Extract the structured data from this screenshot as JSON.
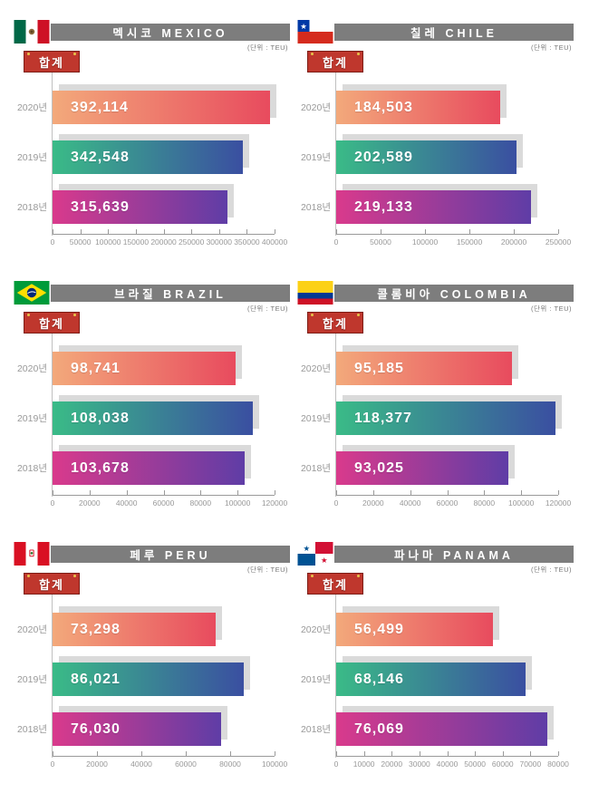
{
  "badge_label": "합계",
  "unit_label": "(단위 : TEU)",
  "row_tops": [
    80,
    135,
    190
  ],
  "colors": {
    "header_bg": "#7d7d7d",
    "title_text": "#ffffff",
    "unit_text": "#777777",
    "axis_line": "#9a9a9a",
    "connector_line": "#c0c0c0",
    "tick_text": "#999999",
    "year_text": "#999999",
    "bar_shadow": "#dadada",
    "badge_bg": "#bf372d",
    "badge_border": "#7e1d16",
    "value_text": "#ffffff",
    "row_gradients": [
      [
        "#f3a97b",
        "#e84b5e"
      ],
      [
        "#3abb87",
        "#3a4fa1"
      ],
      [
        "#d93a8c",
        "#5f3da6"
      ]
    ]
  },
  "chart_data": [
    {
      "type": "bar",
      "orientation": "horizontal",
      "title": "멕시코 MEXICO",
      "country_kr": "멕시코",
      "country_en": "MEXICO",
      "flag_icon": "mexico-flag-icon",
      "unit": "(단위 : TEU)",
      "legend": "합계",
      "categories": [
        "2020년",
        "2019년",
        "2018년"
      ],
      "values": [
        392114,
        342548,
        315639
      ],
      "value_labels": [
        "392,114",
        "342,548",
        "315,639"
      ],
      "xlim": [
        0,
        400000
      ],
      "ticks": [
        0,
        50000,
        100000,
        150000,
        200000,
        250000,
        300000,
        350000,
        400000
      ]
    },
    {
      "type": "bar",
      "orientation": "horizontal",
      "title": "칠레 CHILE",
      "country_kr": "칠레",
      "country_en": "CHILE",
      "flag_icon": "chile-flag-icon",
      "unit": "(단위 : TEU)",
      "legend": "합계",
      "categories": [
        "2020년",
        "2019년",
        "2018년"
      ],
      "values": [
        184503,
        202589,
        219133
      ],
      "value_labels": [
        "184,503",
        "202,589",
        "219,133"
      ],
      "xlim": [
        0,
        250000
      ],
      "ticks": [
        0,
        50000,
        100000,
        150000,
        200000,
        250000
      ]
    },
    {
      "type": "bar",
      "orientation": "horizontal",
      "title": "브라질 BRAZIL",
      "country_kr": "브라질",
      "country_en": "BRAZIL",
      "flag_icon": "brazil-flag-icon",
      "unit": "(단위 : TEU)",
      "legend": "합계",
      "categories": [
        "2020년",
        "2019년",
        "2018년"
      ],
      "values": [
        98741,
        108038,
        103678
      ],
      "value_labels": [
        "98,741",
        "108,038",
        "103,678"
      ],
      "xlim": [
        0,
        120000
      ],
      "ticks": [
        0,
        20000,
        40000,
        60000,
        80000,
        100000,
        120000
      ]
    },
    {
      "type": "bar",
      "orientation": "horizontal",
      "title": "콜롬비아 COLOMBIA",
      "country_kr": "콜롬비아",
      "country_en": "COLOMBIA",
      "flag_icon": "colombia-flag-icon",
      "unit": "(단위 : TEU)",
      "legend": "합계",
      "categories": [
        "2020년",
        "2019년",
        "2018년"
      ],
      "values": [
        95185,
        118377,
        93025
      ],
      "value_labels": [
        "95,185",
        "118,377",
        "93,025"
      ],
      "xlim": [
        0,
        120000
      ],
      "ticks": [
        0,
        20000,
        40000,
        60000,
        80000,
        100000,
        120000
      ]
    },
    {
      "type": "bar",
      "orientation": "horizontal",
      "title": "페루 PERU",
      "country_kr": "페루",
      "country_en": "PERU",
      "flag_icon": "peru-flag-icon",
      "unit": "(단위 : TEU)",
      "legend": "합계",
      "categories": [
        "2020년",
        "2019년",
        "2018년"
      ],
      "values": [
        73298,
        86021,
        76030
      ],
      "value_labels": [
        "73,298",
        "86,021",
        "76,030"
      ],
      "xlim": [
        0,
        100000
      ],
      "ticks": [
        0,
        20000,
        40000,
        60000,
        80000,
        100000
      ]
    },
    {
      "type": "bar",
      "orientation": "horizontal",
      "title": "파나마 PANAMA",
      "country_kr": "파나마",
      "country_en": "PANAMA",
      "flag_icon": "panama-flag-icon",
      "unit": "(단위 : TEU)",
      "legend": "합계",
      "categories": [
        "2020년",
        "2019년",
        "2018년"
      ],
      "values": [
        56499,
        68146,
        76069
      ],
      "value_labels": [
        "56,499",
        "68,146",
        "76,069"
      ],
      "xlim": [
        0,
        80000
      ],
      "ticks": [
        0,
        10000,
        20000,
        30000,
        40000,
        50000,
        60000,
        70000,
        80000
      ]
    }
  ]
}
